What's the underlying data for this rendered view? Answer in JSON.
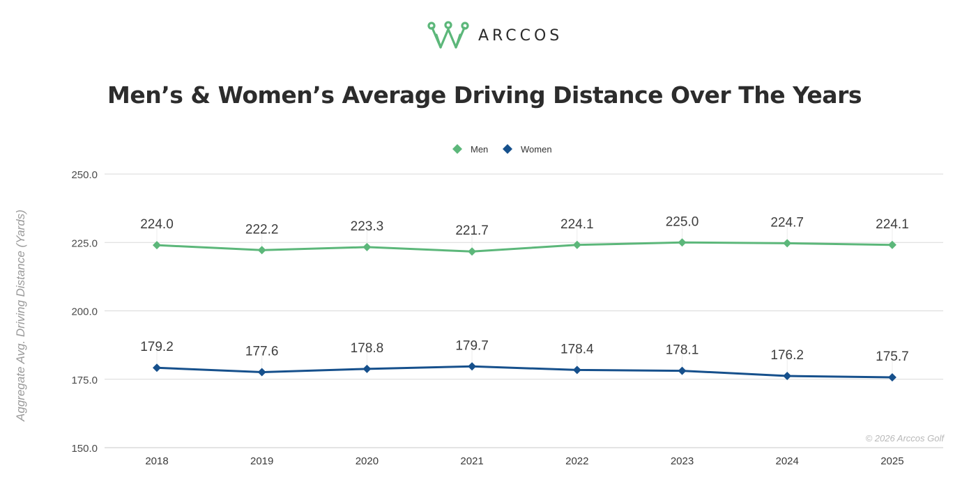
{
  "brand": {
    "name": "ARCCOS",
    "accent_color": "#5cb77a"
  },
  "copyright": "© 2026 Arccos Golf",
  "chart_data": {
    "type": "line",
    "title": "Men’s & Women’s Average Driving Distance Over The Years",
    "xlabel": "",
    "ylabel": "Aggregate Avg. Driving Distance (Yards)",
    "categories": [
      "2018",
      "2019",
      "2020",
      "2021",
      "2022",
      "2023",
      "2024",
      "2025"
    ],
    "ylim": [
      150,
      250
    ],
    "yticks": [
      "150.0",
      "175.0",
      "200.0",
      "225.0",
      "250.0"
    ],
    "ytick_values": [
      150,
      175,
      200,
      225,
      250
    ],
    "grid": "horizontal",
    "legend_position": "top-center",
    "marker": "diamond",
    "series": [
      {
        "name": "Men",
        "color": "#5cb77a",
        "values": [
          224.0,
          222.2,
          223.3,
          221.7,
          224.1,
          225.0,
          224.7,
          224.1
        ],
        "labels": [
          "224.0",
          "222.2",
          "223.3",
          "221.7",
          "224.1",
          "225.0",
          "224.7",
          "224.1"
        ]
      },
      {
        "name": "Women",
        "color": "#16508c",
        "values": [
          179.2,
          177.6,
          178.8,
          179.7,
          178.4,
          178.1,
          176.2,
          175.7
        ],
        "labels": [
          "179.2",
          "177.6",
          "178.8",
          "179.7",
          "178.4",
          "178.1",
          "176.2",
          "175.7"
        ]
      }
    ]
  }
}
